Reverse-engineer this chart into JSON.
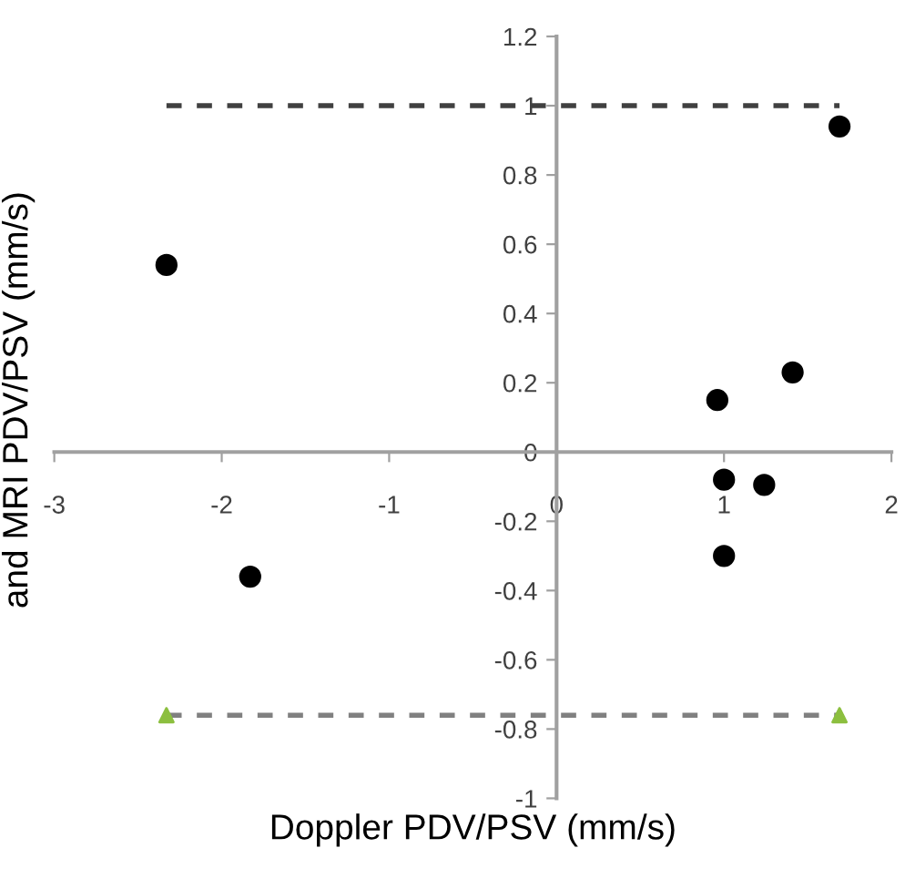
{
  "chart_data": {
    "type": "scatter",
    "xlabel": "Doppler PDV/PSV (mm/s)",
    "ylabel": "and MRI PDV/PSV (mm/s)",
    "xlim": [
      -3,
      2
    ],
    "xticks": [
      -3,
      -2,
      -1,
      0,
      1,
      2
    ],
    "ylim": [
      -1,
      1.2
    ],
    "yticks": [
      -1,
      -0.8,
      -0.6,
      -0.4,
      -0.2,
      0,
      0.2,
      0.4,
      0.6,
      0.8,
      1,
      1.2
    ],
    "grid": false,
    "legend": false,
    "series": [
      {
        "marker": "circle",
        "color": "#000000",
        "x": [
          -2.33,
          1.69,
          0.96,
          1.41,
          1.0,
          1.24,
          1.0,
          -1.83
        ],
        "values": [
          0.54,
          0.94,
          0.15,
          0.23,
          -0.08,
          -0.095,
          -0.3,
          -0.36
        ]
      },
      {
        "type": "line",
        "marker": "none",
        "line_style": "dashed",
        "color": "#404040",
        "x": [
          -2.33,
          1.69
        ],
        "values": [
          1,
          1
        ]
      },
      {
        "type": "line",
        "marker": "none",
        "line_style": "dashed",
        "color": "#808080",
        "x": [
          -2.33,
          1.69
        ],
        "values": [
          -0.76,
          -0.76
        ]
      },
      {
        "type": "scatter",
        "marker": "triangle",
        "color": "#8cbf3f",
        "x": [
          -2.33,
          1.69
        ],
        "values": [
          -0.76,
          -0.76
        ]
      }
    ]
  }
}
